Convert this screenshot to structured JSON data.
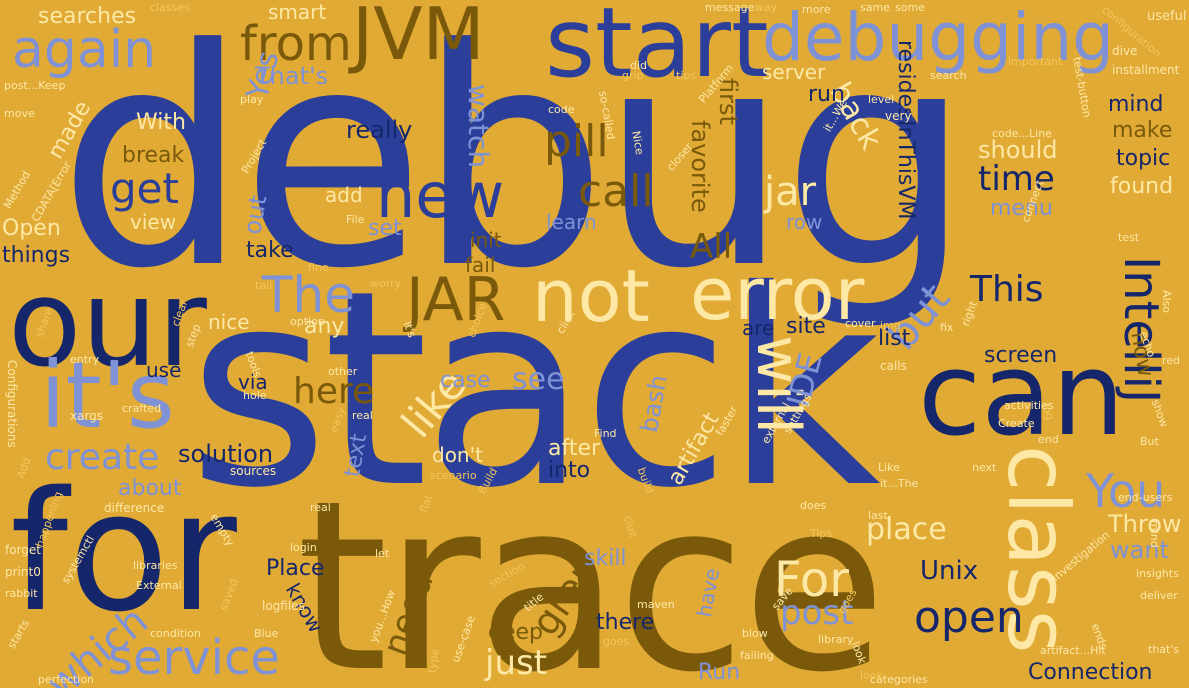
{
  "words": [
    "debug",
    "stack",
    "trace",
    "for",
    "our",
    "can",
    "it's",
    "class",
    "start",
    "debugging",
    "new",
    "JVM",
    "again",
    "not",
    "error",
    "JAR",
    "The",
    "IntelliJ",
    "You",
    "will",
    "from",
    "call",
    "get",
    "jar",
    "time",
    "pill",
    "watch",
    "back",
    "Yes",
    "This",
    "but",
    "like",
    "here",
    "service",
    "which",
    "create",
    "open",
    "For",
    "post",
    "grep",
    "need",
    "Throw",
    "want",
    "Unix",
    "Place",
    "found",
    "topic",
    "make",
    "mind",
    "should",
    "really",
    "run",
    "With",
    "break",
    "made",
    "Open",
    "things",
    "searches",
    "That's",
    "resides",
    "InThisVM",
    "first",
    "favorite",
    "init",
    "fail",
    "All",
    "learn",
    "view",
    "set",
    "add",
    "out",
    "take",
    "nice",
    "any",
    "list",
    "site",
    "are",
    "now",
    "screen",
    "menu",
    "row",
    "server",
    "smart",
    "solution",
    "after",
    "into",
    "don't",
    "case",
    "see",
    "bash",
    "IDE",
    "artifact",
    "place",
    "deep",
    "there",
    "skill",
    "have",
    "about",
    "text",
    "via",
    "use",
    "Connection",
    "Run",
    "just",
    "know",
    "libraries",
    "difference",
    "print0",
    "forget",
    "perfection",
    "xargs",
    "crafted",
    "Configurations",
    "hole",
    "entry",
    "sources",
    "empty",
    "login",
    "logfiles",
    "let",
    "section",
    "title",
    "maven",
    "goes",
    "look",
    "useful",
    "installment",
    "dive",
    "configuration",
    "message",
    "way",
    "more",
    "same",
    "some",
    "classes",
    "tips",
    "grip",
    "did",
    "post...Keep",
    "move",
    "play",
    "code",
    "so-called",
    "Nice",
    "Platform",
    "very",
    "tail",
    "option",
    "fine",
    "worry",
    "It's",
    "click",
    "clue",
    "build",
    "faster",
    "external",
    "settings",
    "calls",
    "red",
    "echo",
    "Also",
    "Find",
    "Like",
    "end-users",
    "insights",
    "deliver",
    "that's",
    "ends",
    "categories",
    "failing",
    "library",
    "blow",
    "save",
    "investigation",
    "real",
    "does",
    "test",
    "Tips",
    "last",
    "systemctl",
    "starts",
    "External",
    "Blue",
    "saved",
    "condition",
    "happening",
    "rabbit",
    "Add",
    "clear",
    "step",
    "log",
    "Create",
    "end",
    "show",
    "But",
    "level",
    "closer",
    "choice",
    "it...We",
    "search",
    "important",
    "img",
    "connect",
    "code...Line",
    "test-button",
    "File",
    "Project",
    "Method",
    "CDATA[Error",
    "tools",
    "share",
    "other",
    "easy",
    "real",
    "cover",
    "right",
    "next",
    "activities",
    "fix",
    "Build",
    "scenario",
    "use-case",
    "you...How",
    "artifact...Hit",
    "goes",
    "it...The",
    "flat",
    "type",
    "look",
    "mind"
  ]
}
